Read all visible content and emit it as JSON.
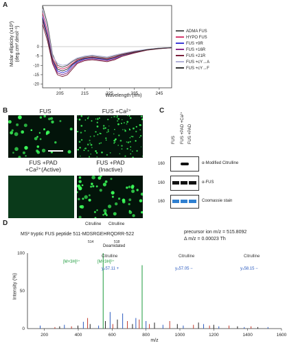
{
  "panel_a": {
    "letter": "A",
    "ylabel_line1": "Molar ellipticity (x10³)",
    "ylabel_line2": "(deg.cm².dmol⁻¹)",
    "xlabel": "Wavelength (nm)",
    "x_ticks": [
      "205",
      "215",
      "225",
      "235",
      "245"
    ],
    "y_ticks": [
      "0",
      "-5",
      "-10",
      "-15",
      "-20"
    ],
    "legend": [
      {
        "label": "ADMA FUS",
        "color": "#555555"
      },
      {
        "label": "HYPO FUS",
        "color": "#d63a6e"
      },
      {
        "label": "FUS +9R",
        "color": "#3a3ad6"
      },
      {
        "label": "FUS +16R",
        "color": "#8a2b8a"
      },
      {
        "label": "FUS +21R",
        "color": "#7a1f3a"
      },
      {
        "label": "FUS +cY→A",
        "color": "#b0b0d8"
      },
      {
        "label": "FUS +cY→F",
        "color": "#333333"
      }
    ]
  },
  "panel_b": {
    "letter": "B",
    "images": [
      {
        "label": "FUS"
      },
      {
        "label": "FUS +Ca²⁺"
      },
      {
        "label": "FUS +PAD\n+Ca²⁺(Active)"
      },
      {
        "label": "FUS +PAD\n(Inactive)"
      }
    ]
  },
  "panel_c": {
    "letter": "C",
    "lanes": [
      "FUS",
      "FUS +PAD +Ca²⁺",
      "FUS +PAD"
    ],
    "rows": [
      {
        "marker": "160",
        "label": "α-Modified Citrulline"
      },
      {
        "marker": "160",
        "label": "α-FUS"
      },
      {
        "marker": "160",
        "label": "Coomassie stain"
      }
    ]
  },
  "panel_d": {
    "letter": "D",
    "ms_title": "MS² tryptic FUS peptide",
    "sequence": "511-MDSRGEHRQDRR-522",
    "top_labels": {
      "citrulline": "Citrulline",
      "cit_pos1": "514",
      "cit_pos2": "518",
      "deamidated": "Deamidated"
    },
    "precursor": "precursor ion m/z = 515.8092",
    "delta": "Δ m/z = 0.00023 Th",
    "ylabel": "Intensity (%)",
    "xlabel": "m/z",
    "y_ticks": [
      "100",
      "50",
      "0"
    ],
    "x_ticks": [
      "200",
      "400",
      "600",
      "800",
      "1000",
      "1200",
      "1400",
      "1600"
    ],
    "annotations": [
      {
        "text": "[M+3H]³⁺",
        "color": "#1a9a3a"
      },
      {
        "text": "[M+3H]³⁺",
        "color": "#1a9a3a"
      },
      {
        "text": "Citrulline",
        "color": "#333333"
      },
      {
        "text": "Citrulline",
        "color": "#333333"
      },
      {
        "text": "Citrulline",
        "color": "#333333"
      },
      {
        "text": "y₄57.11 +",
        "color": "#2a5abf"
      },
      {
        "text": "y₄57.05 −",
        "color": "#2a5abf"
      },
      {
        "text": "y₄58.15 −",
        "color": "#2a5abf"
      }
    ]
  },
  "chart_data": [
    {
      "type": "line",
      "xlabel": "Wavelength (nm)",
      "ylabel": "Molar ellipticity (x10³) (deg.cm².dmol⁻¹)",
      "xlim": [
        198,
        250
      ],
      "ylim": [
        -22,
        22
      ],
      "x": [
        198,
        200,
        202,
        204,
        206,
        208,
        210,
        212,
        215,
        218,
        221,
        224,
        227,
        230,
        235,
        240,
        245,
        250
      ],
      "series": [
        {
          "name": "ADMA FUS",
          "values": [
            22,
            12,
            -4,
            -10,
            -11,
            -10,
            -8,
            -6.5,
            -5.5,
            -5,
            -5.5,
            -6,
            -5,
            -4,
            -2.5,
            -1.5,
            -0.8,
            -0.5
          ]
        },
        {
          "name": "HYPO FUS",
          "values": [
            18,
            8,
            -6,
            -11,
            -12,
            -11,
            -9,
            -7,
            -6,
            -5.5,
            -6,
            -6.5,
            -5.5,
            -4.2,
            -2.8,
            -1.6,
            -0.9,
            -0.5
          ]
        },
        {
          "name": "FUS +9R",
          "values": [
            16,
            6,
            -7,
            -13,
            -14,
            -13,
            -10,
            -8,
            -6.5,
            -6,
            -6.5,
            -7,
            -6,
            -4.5,
            -3,
            -1.7,
            -1,
            -0.6
          ]
        },
        {
          "name": "FUS +16R",
          "values": [
            14,
            5,
            -8,
            -14,
            -15,
            -14,
            -11,
            -8.5,
            -7,
            -6.5,
            -7,
            -7.5,
            -6.5,
            -5,
            -3.2,
            -1.8,
            -1,
            -0.6
          ]
        },
        {
          "name": "FUS +21R",
          "values": [
            12,
            3,
            -9,
            -15,
            -16,
            -15,
            -12,
            -9,
            -7.5,
            -7,
            -7.5,
            -8,
            -7,
            -5.2,
            -3.4,
            -1.9,
            -1.1,
            -0.6
          ]
        },
        {
          "name": "FUS +cY→A",
          "values": [
            20,
            10,
            -5,
            -9,
            -10,
            -9.5,
            -7.5,
            -6,
            -5,
            -4.5,
            -5,
            -5.5,
            -4.5,
            -3.6,
            -2.3,
            -1.4,
            -0.8,
            -0.4
          ]
        },
        {
          "name": "FUS +cY→F",
          "values": [
            15,
            5,
            -7,
            -12,
            -13,
            -12,
            -9.5,
            -7.5,
            -6.2,
            -5.8,
            -6.2,
            -6.8,
            -5.8,
            -4.4,
            -2.9,
            -1.6,
            -0.9,
            -0.5
          ]
        }
      ]
    },
    {
      "type": "bar",
      "xlabel": "m/z",
      "ylabel": "Intensity (%)",
      "xlim": [
        100,
        1600
      ],
      "ylim": [
        0,
        100
      ],
      "x": [
        175,
        262,
        290,
        318,
        360,
        398,
        430,
        455,
        470,
        520,
        547,
        560,
        588,
        604,
        631,
        662,
        690,
        720,
        740,
        760,
        777,
        800,
        820,
        850,
        900,
        940,
        985,
        1020,
        1080,
        1110,
        1140,
        1175,
        1200,
        1230,
        1290,
        1340,
        1380,
        1420,
        1460,
        1520
      ],
      "values": [
        4,
        2,
        3,
        5,
        3,
        4,
        9,
        14,
        6,
        4,
        100,
        10,
        22,
        6,
        12,
        20,
        10,
        6,
        14,
        12,
        84,
        10,
        6,
        8,
        5,
        10,
        6,
        4,
        5,
        8,
        6,
        4,
        5,
        3,
        4,
        3,
        2,
        3,
        2,
        2
      ]
    }
  ]
}
